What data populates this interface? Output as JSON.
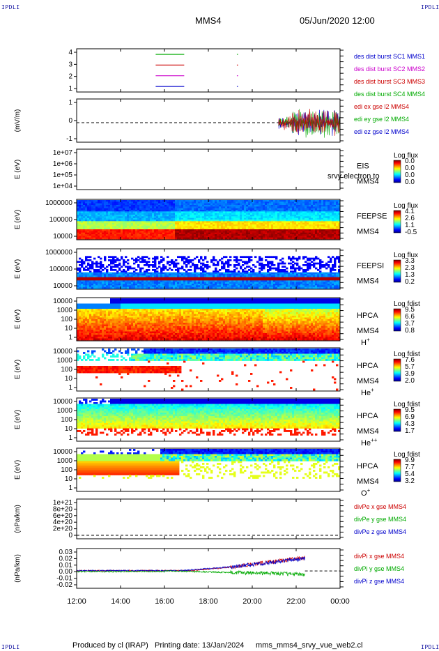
{
  "header": {
    "corner_label": "IPDLI",
    "spacecraft": "MMS4",
    "datetime": "05/Jun/2020 12:00"
  },
  "footer": {
    "produced_by": "Produced by cl (IRAP)",
    "printing_date": "Printing date: 13/Jan/2024",
    "script_name": "mms_mms4_srvy_vue_web2.cl"
  },
  "time_axis": {
    "ticks": [
      "12:00",
      "14:00",
      "16:00",
      "18:00",
      "20:00",
      "22:00",
      "00:00"
    ],
    "start_hour": 12,
    "end_hour": 24
  },
  "chart_data": [
    {
      "type": "line",
      "panel": "burst",
      "y_ticks": [
        "4",
        "3",
        "2",
        "1"
      ],
      "series": [
        {
          "name": "des dist burst SC1 MMS1",
          "color": "#0000cc",
          "level": 1,
          "intervals": [
            [
              15.6,
              16.9
            ],
            [
              19.3,
              19.35
            ]
          ]
        },
        {
          "name": "des dist burst SC2 MMS2",
          "color": "#cc00cc",
          "level": 2,
          "intervals": [
            [
              15.6,
              16.9
            ],
            [
              19.3,
              19.35
            ]
          ]
        },
        {
          "name": "des dist burst SC3 MMS3",
          "color": "#cc0000",
          "level": 3,
          "intervals": [
            [
              15.6,
              16.9
            ],
            [
              19.3,
              19.35
            ]
          ]
        },
        {
          "name": "des dist burst SC4 MMS4",
          "color": "#00aa00",
          "level": 4,
          "intervals": [
            [
              15.6,
              16.9
            ],
            [
              19.3,
              19.35
            ]
          ]
        }
      ]
    },
    {
      "type": "line",
      "panel": "edi",
      "ylabel": "(mV/m)",
      "y_ticks": [
        "1",
        "0",
        "-1"
      ],
      "ylim": [
        -1.6,
        1.6
      ],
      "series": [
        {
          "name": "edi ex gse l2 MMS4",
          "color": "#cc0000"
        },
        {
          "name": "edi ey gse l2 MMS4",
          "color": "#00aa00"
        },
        {
          "name": "edi ez gse l2 MMS4",
          "color": "#0000cc"
        }
      ],
      "data_interval": [
        21.2,
        24.0
      ]
    },
    {
      "type": "heatmap",
      "panel": "eis",
      "ylabel": "E (eV)",
      "y_ticks": [
        "1e+07",
        "1e+06",
        "1e+05",
        "1e+04"
      ],
      "instrument": "EIS",
      "sc": "MMS4",
      "overlay": "srvy electron to",
      "cbar_title": "Log flux",
      "cbar_ticks": [
        "0.0",
        "0.0",
        "0.0",
        "0.0"
      ]
    },
    {
      "type": "heatmap",
      "panel": "feepse",
      "ylabel": "E (eV)",
      "y_ticks": [
        "1000000",
        "100000",
        "10000"
      ],
      "instrument": "FEEPSE",
      "sc": "MMS4",
      "cbar_title": "Log flux",
      "cbar_ticks": [
        "4.1",
        "2.6",
        "1.1",
        "-0.5"
      ]
    },
    {
      "type": "heatmap",
      "panel": "feepsi",
      "ylabel": "E (eV)",
      "y_ticks": [
        "1000000",
        "100000",
        "10000"
      ],
      "instrument": "FEEPSI",
      "sc": "MMS4",
      "cbar_title": "Log flux",
      "cbar_ticks": [
        "3.3",
        "2.3",
        "1.3",
        "0.2"
      ]
    },
    {
      "type": "heatmap",
      "panel": "hpca_h",
      "ylabel": "E (eV)",
      "y_ticks": [
        "10000",
        "1000",
        "100",
        "10",
        "1"
      ],
      "instrument": "HPCA",
      "sc": "MMS4",
      "species": "H",
      "species_sup": "+",
      "cbar_title": "Log fdist",
      "cbar_ticks": [
        "9.5",
        "6.6",
        "3.7",
        "0.8"
      ]
    },
    {
      "type": "heatmap",
      "panel": "hpca_he",
      "ylabel": "E (eV)",
      "y_ticks": [
        "10000",
        "1000",
        "100",
        "10",
        "1"
      ],
      "instrument": "HPCA",
      "sc": "MMS4",
      "species": "He",
      "species_sup": "+",
      "cbar_title": "Log fdist",
      "cbar_ticks": [
        "7.6",
        "5.7",
        "3.9",
        "2.0"
      ]
    },
    {
      "type": "heatmap",
      "panel": "hpca_hepp",
      "ylabel": "E (eV)",
      "y_ticks": [
        "10000",
        "1000",
        "100",
        "10",
        "1"
      ],
      "instrument": "HPCA",
      "sc": "MMS4",
      "species": "He",
      "species_sup": "++",
      "cbar_title": "Log fdist",
      "cbar_ticks": [
        "9.5",
        "6.9",
        "4.3",
        "1.7"
      ]
    },
    {
      "type": "heatmap",
      "panel": "hpca_o",
      "ylabel": "E (eV)",
      "y_ticks": [
        "10000",
        "1000",
        "100",
        "10",
        "1"
      ],
      "instrument": "HPCA",
      "sc": "MMS4",
      "species": "O",
      "species_sup": "+",
      "cbar_title": "Log fdist",
      "cbar_ticks": [
        "9.9",
        "7.7",
        "5.4",
        "3.2"
      ]
    },
    {
      "type": "line",
      "panel": "divpe",
      "ylabel": "(nPa/km)",
      "y_ticks": [
        "1e+21",
        "8e+20",
        "6e+20",
        "4e+20",
        "2e+20",
        "0"
      ],
      "series": [
        {
          "name": "divPe x gse MMS4",
          "color": "#cc0000"
        },
        {
          "name": "divPe y gse MMS4",
          "color": "#00aa00"
        },
        {
          "name": "divPe z gse MMS4",
          "color": "#0000cc"
        }
      ]
    },
    {
      "type": "line",
      "panel": "divpi",
      "ylabel": "(nPa/km)",
      "y_ticks": [
        "0.03",
        "0.02",
        "0.01",
        "0.00",
        "-0.01",
        "-0.02"
      ],
      "ylim": [
        -0.025,
        0.033
      ],
      "series": [
        {
          "name": "divPi x gse MMS4",
          "color": "#cc0000"
        },
        {
          "name": "divPi y gse MMS4",
          "color": "#00aa00"
        },
        {
          "name": "divPi z gse MMS4",
          "color": "#0000cc"
        }
      ],
      "data_interval": [
        12.0,
        22.4
      ]
    }
  ]
}
